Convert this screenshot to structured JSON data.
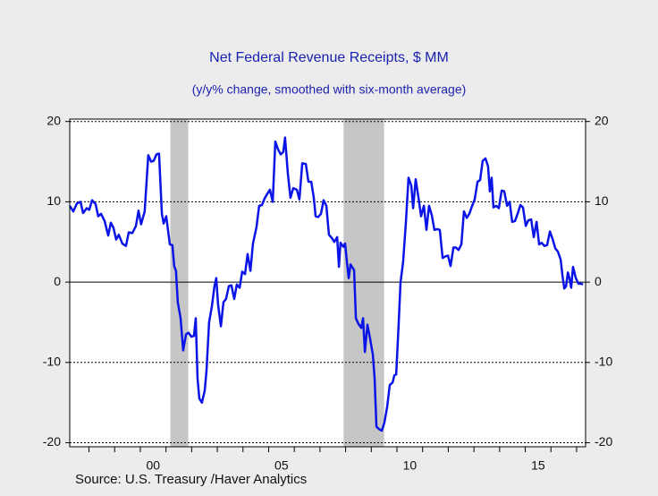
{
  "chart_data": {
    "type": "line",
    "title": "Net Federal Revenue Receipts, $ MM",
    "subtitle": "(y/y% change, smoothed with six-month average)",
    "source": "Source:  U.S. Treasury /Haver Analytics",
    "xlim": [
      1997.25,
      2017.35
    ],
    "xticks": [
      {
        "value": 2000.5,
        "label": "00"
      },
      {
        "value": 2005.5,
        "label": "05"
      },
      {
        "value": 2010.5,
        "label": "10"
      },
      {
        "value": 2015.5,
        "label": "15"
      }
    ],
    "minor_xticks": [
      1998,
      1999,
      2000,
      2001,
      2002,
      2003,
      2004,
      2005,
      2006,
      2007,
      2008,
      2009,
      2010,
      2011,
      2012,
      2013,
      2014,
      2015,
      2016,
      2017
    ],
    "ylim": [
      -20.5,
      20.3
    ],
    "yticks": [
      -20,
      -10,
      0,
      10,
      20
    ],
    "y2lim": [
      -20.5,
      20.3
    ],
    "y2ticks": [
      -20,
      -10,
      0,
      10,
      20
    ],
    "grid": true,
    "shaded_ranges": [
      [
        2001.17,
        2001.87
      ],
      [
        2007.92,
        2009.5
      ]
    ],
    "shade_color": "#c6c6c6",
    "x": [
      1997.25,
      1997.39,
      1997.53,
      1997.67,
      1997.77,
      1997.91,
      1998.01,
      1998.12,
      1998.26,
      1998.36,
      1998.47,
      1998.61,
      1998.75,
      1998.85,
      1998.95,
      1999.06,
      1999.16,
      1999.3,
      1999.44,
      1999.55,
      1999.69,
      1999.83,
      1999.93,
      2000.03,
      2000.17,
      2000.31,
      2000.42,
      2000.52,
      2000.63,
      2000.73,
      2000.84,
      2000.91,
      2001.01,
      2001.15,
      2001.25,
      2001.32,
      2001.39,
      2001.46,
      2001.57,
      2001.67,
      2001.78,
      2001.88,
      2001.99,
      2002.09,
      2002.16,
      2002.23,
      2002.3,
      2002.4,
      2002.51,
      2002.58,
      2002.68,
      2002.79,
      2002.89,
      2002.96,
      2003.03,
      2003.14,
      2003.24,
      2003.34,
      2003.45,
      2003.55,
      2003.66,
      2003.76,
      2003.87,
      2003.97,
      2004.08,
      2004.18,
      2004.29,
      2004.39,
      2004.53,
      2004.63,
      2004.74,
      2004.84,
      2004.95,
      2005.05,
      2005.16,
      2005.26,
      2005.37,
      2005.47,
      2005.57,
      2005.64,
      2005.75,
      2005.85,
      2005.96,
      2006.1,
      2006.2,
      2006.31,
      2006.45,
      2006.55,
      2006.66,
      2006.76,
      2006.83,
      2006.93,
      2007.04,
      2007.14,
      2007.25,
      2007.35,
      2007.46,
      2007.56,
      2007.67,
      2007.74,
      2007.8,
      2007.91,
      2007.98,
      2008.05,
      2008.12,
      2008.19,
      2008.33,
      2008.4,
      2008.5,
      2008.61,
      2008.68,
      2008.75,
      2008.85,
      2008.95,
      2009.06,
      2009.13,
      2009.2,
      2009.3,
      2009.41,
      2009.51,
      2009.62,
      2009.72,
      2009.83,
      2009.9,
      2009.97,
      2010.07,
      2010.14,
      2010.24,
      2010.35,
      2010.45,
      2010.56,
      2010.63,
      2010.73,
      2010.84,
      2010.94,
      2011.05,
      2011.15,
      2011.25,
      2011.36,
      2011.46,
      2011.57,
      2011.67,
      2011.78,
      2011.88,
      2011.99,
      2012.09,
      2012.2,
      2012.3,
      2012.4,
      2012.51,
      2012.61,
      2012.72,
      2012.82,
      2012.93,
      2013.03,
      2013.14,
      2013.24,
      2013.34,
      2013.45,
      2013.55,
      2013.62,
      2013.69,
      2013.76,
      2013.87,
      2013.97,
      2014.08,
      2014.18,
      2014.29,
      2014.39,
      2014.49,
      2014.6,
      2014.7,
      2014.81,
      2014.91,
      2015.02,
      2015.12,
      2015.23,
      2015.33,
      2015.44,
      2015.54,
      2015.64,
      2015.75,
      2015.85,
      2015.96,
      2016.06,
      2016.17,
      2016.27,
      2016.38,
      2016.45,
      2016.52,
      2016.59,
      2016.66,
      2016.72,
      2016.79,
      2016.86,
      2016.97,
      2017.07,
      2017.18,
      2017.25
    ],
    "series": [
      {
        "name": "Net Federal Revenue Receipts",
        "color": "#0a14e6",
        "values": [
          9.5,
          8.8,
          9.8,
          10,
          8.6,
          9.2,
          9.0,
          10.2,
          9.7,
          8.2,
          8.5,
          7.6,
          5.8,
          7.4,
          6.8,
          5.3,
          5.9,
          4.8,
          4.5,
          6.2,
          6.1,
          7.0,
          8.9,
          7.2,
          8.8,
          15.8,
          15.0,
          15.1,
          15.9,
          16.0,
          8.5,
          7.3,
          8.2,
          4.7,
          4.6,
          2.0,
          1.4,
          -2.5,
          -4.5,
          -8.5,
          -6.5,
          -6.3,
          -6.8,
          -6.7,
          -4.5,
          -12,
          -14.5,
          -15,
          -13.5,
          -11,
          -5,
          -3.0,
          -0.5,
          0.5,
          -2.8,
          -5.5,
          -2.5,
          -2.1,
          -0.5,
          -0.4,
          -2.1,
          -0.3,
          -0.7,
          1.3,
          1.0,
          3.5,
          1.4,
          4.8,
          6.9,
          9.5,
          9.6,
          10.4,
          11.0,
          11.5,
          10.0,
          17.5,
          16.5,
          15.9,
          16.2,
          18.0,
          13.5,
          10.5,
          11.7,
          11.5,
          10.3,
          14.8,
          14.7,
          12.5,
          12.5,
          10.5,
          8.2,
          8.1,
          8.5,
          10.2,
          9.5,
          5.9,
          5.5,
          5.0,
          5.6,
          1.9,
          4.9,
          4.4,
          4.8,
          2.5,
          0.5,
          2.2,
          1.5,
          -4.5,
          -5.2,
          -5.7,
          -4.5,
          -8.7,
          -5.3,
          -7.0,
          -9.0,
          -12.0,
          -18.0,
          -18.3,
          -18.5,
          -17.5,
          -15.5,
          -12.8,
          -12.5,
          -11.6,
          -11.5,
          -5,
          0,
          2.5,
          7.5,
          13.0,
          12.0,
          9.2,
          12.8,
          10.5,
          8.2,
          9.5,
          6.5,
          9.5,
          8.3,
          6.5,
          6.6,
          6.5,
          3.0,
          3.2,
          3.3,
          2.0,
          4.3,
          4.3,
          4.0,
          4.7,
          8.8,
          8.0,
          8.5,
          9.5,
          10.3,
          12.5,
          12.7,
          15.1,
          15.4,
          14.4,
          11.3,
          13.0,
          9.3,
          9.5,
          9.2,
          11.4,
          11.3,
          9.5,
          10,
          7.5,
          7.6,
          8.5,
          9.6,
          9.3,
          7.0,
          7.7,
          7.8,
          5.6,
          7.5,
          4.7,
          4.9,
          4.5,
          4.6,
          6.3,
          5.4,
          4.2,
          3.8,
          2.8,
          0.8,
          -0.8,
          -0.5,
          1.2,
          0.5,
          -0.7,
          1.9,
          0.5,
          -0.2,
          -0.2,
          -0.3
        ]
      }
    ]
  }
}
